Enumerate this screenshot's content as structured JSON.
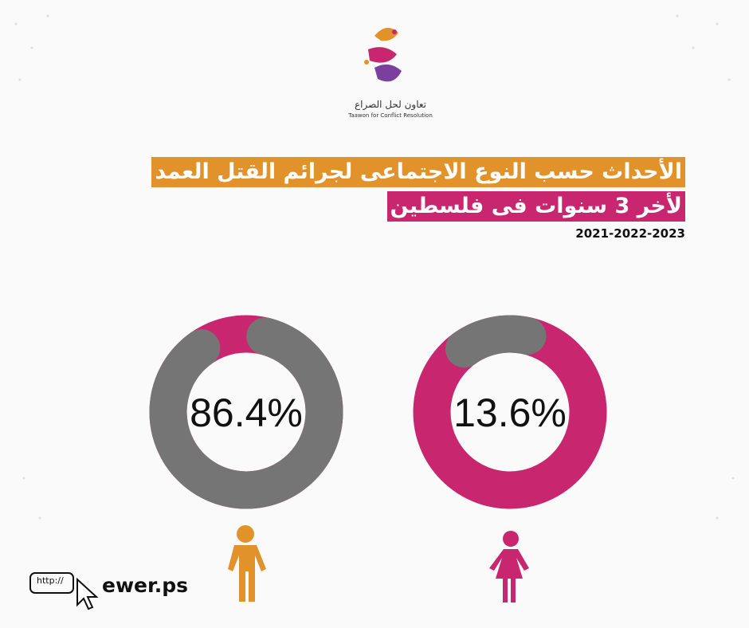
{
  "header": {
    "logo_text": "تعاون لحل الصراع",
    "logo_subtitle": "Taawon for Conflict Resolution"
  },
  "title": "الأحداث حسب النوع الاجتماعى لجرائم القتل العمد",
  "subtitle": "لأخر 3 سنوات فى فلسطين",
  "years": "2021-2022-2023",
  "chart_data": [
    {
      "type": "donut",
      "values": [
        86.4
      ],
      "value_labels": [
        "86.4%"
      ],
      "color": "#757575",
      "track_color": "#c8266f"
    },
    {
      "type": "donut",
      "values": [
        13.6
      ],
      "value_labels": [
        "13.6%"
      ],
      "color": "#757575",
      "track_color": "#c8266f"
    }
  ],
  "footer": {
    "link_box": "http://",
    "url": "ewer.ps"
  }
}
